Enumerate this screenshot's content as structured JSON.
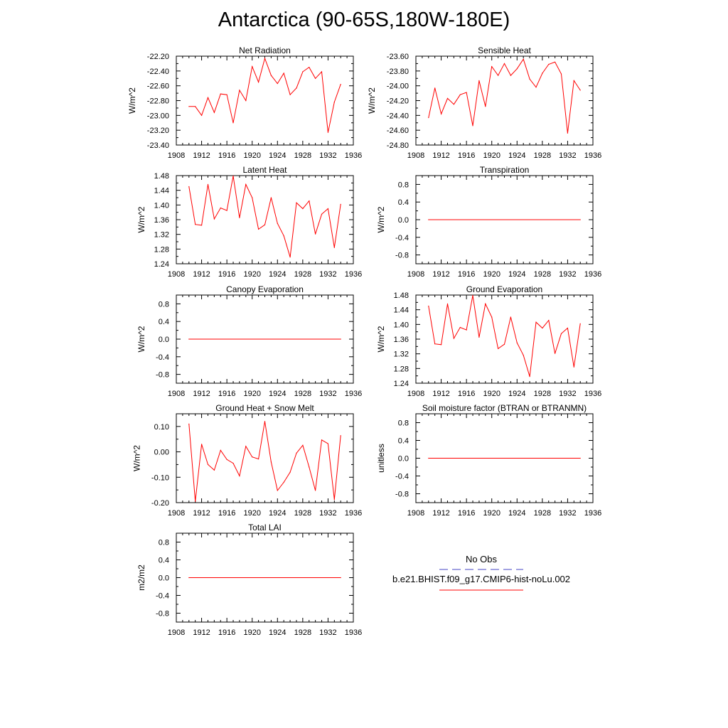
{
  "title": "Antarctica (90-65S,180W-180E)",
  "colors": {
    "model": "#ff0000",
    "obs": "#6a6ad0",
    "axis": "#000000"
  },
  "legend": {
    "obs_label": "No Obs",
    "model_label": "b.e21.BHIST.f09_g17.CMIP6-hist-noLu.002"
  },
  "chart_data": [
    {
      "type": "line",
      "title": "Net Radiation",
      "ylabel": "W/m^2",
      "xlim": [
        1908,
        1936
      ],
      "ylim": [
        -23.4,
        -22.2
      ],
      "xticks": [
        "1908",
        "1912",
        "1916",
        "1920",
        "1924",
        "1928",
        "1932",
        "1936"
      ],
      "yticks": [
        "-22.20",
        "-22.40",
        "-22.60",
        "-22.80",
        "-23.00",
        "-23.20",
        "-23.40"
      ],
      "x": [
        1910,
        1911,
        1912,
        1913,
        1914,
        1915,
        1916,
        1917,
        1918,
        1919,
        1920,
        1921,
        1922,
        1923,
        1924,
        1925,
        1926,
        1927,
        1928,
        1929,
        1930,
        1931,
        1932,
        1933,
        1934
      ],
      "series": [
        {
          "values": [
            -22.88,
            -22.88,
            -23.0,
            -22.76,
            -22.96,
            -22.71,
            -22.72,
            -23.1,
            -22.66,
            -22.8,
            -22.34,
            -22.55,
            -22.23,
            -22.46,
            -22.57,
            -22.43,
            -22.72,
            -22.63,
            -22.41,
            -22.35,
            -22.5,
            -22.41,
            -23.23,
            -22.82,
            -22.58
          ]
        }
      ]
    },
    {
      "type": "line",
      "title": "Sensible Heat",
      "ylabel": "W/m^2",
      "xlim": [
        1908,
        1936
      ],
      "ylim": [
        -24.8,
        -23.6
      ],
      "xticks": [
        "1908",
        "1912",
        "1916",
        "1920",
        "1924",
        "1928",
        "1932",
        "1936"
      ],
      "yticks": [
        "-23.60",
        "-23.80",
        "-24.00",
        "-24.20",
        "-24.40",
        "-24.60",
        "-24.80"
      ],
      "x": [
        1910,
        1911,
        1912,
        1913,
        1914,
        1915,
        1916,
        1917,
        1918,
        1919,
        1920,
        1921,
        1922,
        1923,
        1924,
        1925,
        1926,
        1927,
        1928,
        1929,
        1930,
        1931,
        1932,
        1933,
        1934
      ],
      "series": [
        {
          "values": [
            -24.43,
            -24.03,
            -24.38,
            -24.17,
            -24.25,
            -24.12,
            -24.09,
            -24.54,
            -23.93,
            -24.28,
            -23.74,
            -23.86,
            -23.7,
            -23.86,
            -23.77,
            -23.64,
            -23.91,
            -24.02,
            -23.83,
            -23.71,
            -23.68,
            -23.84,
            -24.64,
            -23.93,
            -24.06
          ]
        }
      ]
    },
    {
      "type": "line",
      "title": "Latent Heat",
      "ylabel": "W/m^2",
      "xlim": [
        1908,
        1936
      ],
      "ylim": [
        1.24,
        1.48
      ],
      "xticks": [
        "1908",
        "1912",
        "1916",
        "1920",
        "1924",
        "1928",
        "1932",
        "1936"
      ],
      "yticks": [
        "1.48",
        "1.44",
        "1.40",
        "1.36",
        "1.32",
        "1.28",
        "1.24"
      ],
      "x": [
        1910,
        1911,
        1912,
        1913,
        1914,
        1915,
        1916,
        1917,
        1918,
        1919,
        1920,
        1921,
        1922,
        1923,
        1924,
        1925,
        1926,
        1927,
        1928,
        1929,
        1930,
        1931,
        1932,
        1933,
        1934
      ],
      "series": [
        {
          "values": [
            1.45,
            1.347,
            1.345,
            1.456,
            1.362,
            1.392,
            1.385,
            1.479,
            1.365,
            1.456,
            1.42,
            1.334,
            1.346,
            1.42,
            1.35,
            1.316,
            1.258,
            1.406,
            1.39,
            1.411,
            1.321,
            1.375,
            1.39,
            1.284,
            1.402
          ]
        }
      ]
    },
    {
      "type": "line",
      "title": "Transpiration",
      "ylabel": "W/m^2",
      "xlim": [
        1908,
        1936
      ],
      "ylim": [
        -1.0,
        1.0
      ],
      "xticks": [
        "1908",
        "1912",
        "1916",
        "1920",
        "1924",
        "1928",
        "1932",
        "1936"
      ],
      "yticks": [
        "0.8",
        "0.4",
        "0.0",
        "-0.4",
        "-0.8"
      ],
      "x": [
        1910,
        1934
      ],
      "series": [
        {
          "values": [
            0.0,
            0.0
          ]
        }
      ]
    },
    {
      "type": "line",
      "title": "Canopy Evaporation",
      "ylabel": "W/m^2",
      "xlim": [
        1908,
        1936
      ],
      "ylim": [
        -1.0,
        1.0
      ],
      "xticks": [
        "1908",
        "1912",
        "1916",
        "1920",
        "1924",
        "1928",
        "1932",
        "1936"
      ],
      "yticks": [
        "0.8",
        "0.4",
        "0.0",
        "-0.4",
        "-0.8"
      ],
      "x": [
        1910,
        1934
      ],
      "series": [
        {
          "values": [
            0.0,
            0.0
          ]
        }
      ]
    },
    {
      "type": "line",
      "title": "Ground Evaporation",
      "ylabel": "W/m^2",
      "xlim": [
        1908,
        1936
      ],
      "ylim": [
        1.24,
        1.48
      ],
      "xticks": [
        "1908",
        "1912",
        "1916",
        "1920",
        "1924",
        "1928",
        "1932",
        "1936"
      ],
      "yticks": [
        "1.48",
        "1.44",
        "1.40",
        "1.36",
        "1.32",
        "1.28",
        "1.24"
      ],
      "x": [
        1910,
        1911,
        1912,
        1913,
        1914,
        1915,
        1916,
        1917,
        1918,
        1919,
        1920,
        1921,
        1922,
        1923,
        1924,
        1925,
        1926,
        1927,
        1928,
        1929,
        1930,
        1931,
        1932,
        1933,
        1934
      ],
      "series": [
        {
          "values": [
            1.45,
            1.347,
            1.345,
            1.456,
            1.362,
            1.392,
            1.385,
            1.479,
            1.365,
            1.456,
            1.42,
            1.334,
            1.346,
            1.42,
            1.35,
            1.316,
            1.258,
            1.406,
            1.39,
            1.411,
            1.321,
            1.375,
            1.39,
            1.284,
            1.402
          ]
        }
      ]
    },
    {
      "type": "line",
      "title": "Ground Heat + Snow Melt",
      "ylabel": "W/m^2",
      "xlim": [
        1908,
        1936
      ],
      "ylim": [
        -0.2,
        0.15
      ],
      "xticks": [
        "1908",
        "1912",
        "1916",
        "1920",
        "1924",
        "1928",
        "1932",
        "1936"
      ],
      "yticks": [
        "0.10",
        "0.00",
        "-0.10",
        "-0.20"
      ],
      "x": [
        1910,
        1911,
        1912,
        1913,
        1914,
        1915,
        1916,
        1917,
        1918,
        1919,
        1920,
        1921,
        1922,
        1923,
        1924,
        1925,
        1926,
        1927,
        1928,
        1929,
        1930,
        1931,
        1932,
        1933,
        1934
      ],
      "series": [
        {
          "values": [
            0.11,
            -0.195,
            0.03,
            -0.05,
            -0.072,
            0.006,
            -0.03,
            -0.045,
            -0.095,
            0.022,
            -0.02,
            -0.028,
            0.12,
            -0.04,
            -0.152,
            -0.12,
            -0.08,
            -0.005,
            0.026,
            -0.06,
            -0.152,
            0.047,
            0.032,
            -0.188,
            0.064
          ]
        }
      ]
    },
    {
      "type": "line",
      "title": "Soil moisture factor (BTRAN or BTRANMN)",
      "ylabel": "unitless",
      "xlim": [
        1908,
        1936
      ],
      "ylim": [
        -1.0,
        1.0
      ],
      "xticks": [
        "1908",
        "1912",
        "1916",
        "1920",
        "1924",
        "1928",
        "1932",
        "1936"
      ],
      "yticks": [
        "0.8",
        "0.4",
        "0.0",
        "-0.4",
        "-0.8"
      ],
      "x": [
        1910,
        1934
      ],
      "series": [
        {
          "values": [
            0.0,
            0.0
          ]
        }
      ]
    },
    {
      "type": "line",
      "title": "Total LAI",
      "ylabel": "m2/m2",
      "xlim": [
        1908,
        1936
      ],
      "ylim": [
        -1.0,
        1.0
      ],
      "xticks": [
        "1908",
        "1912",
        "1916",
        "1920",
        "1924",
        "1928",
        "1932",
        "1936"
      ],
      "yticks": [
        "0.8",
        "0.4",
        "0.0",
        "-0.4",
        "-0.8"
      ],
      "x": [
        1910,
        1934
      ],
      "series": [
        {
          "values": [
            0.0,
            0.0
          ]
        }
      ]
    }
  ]
}
